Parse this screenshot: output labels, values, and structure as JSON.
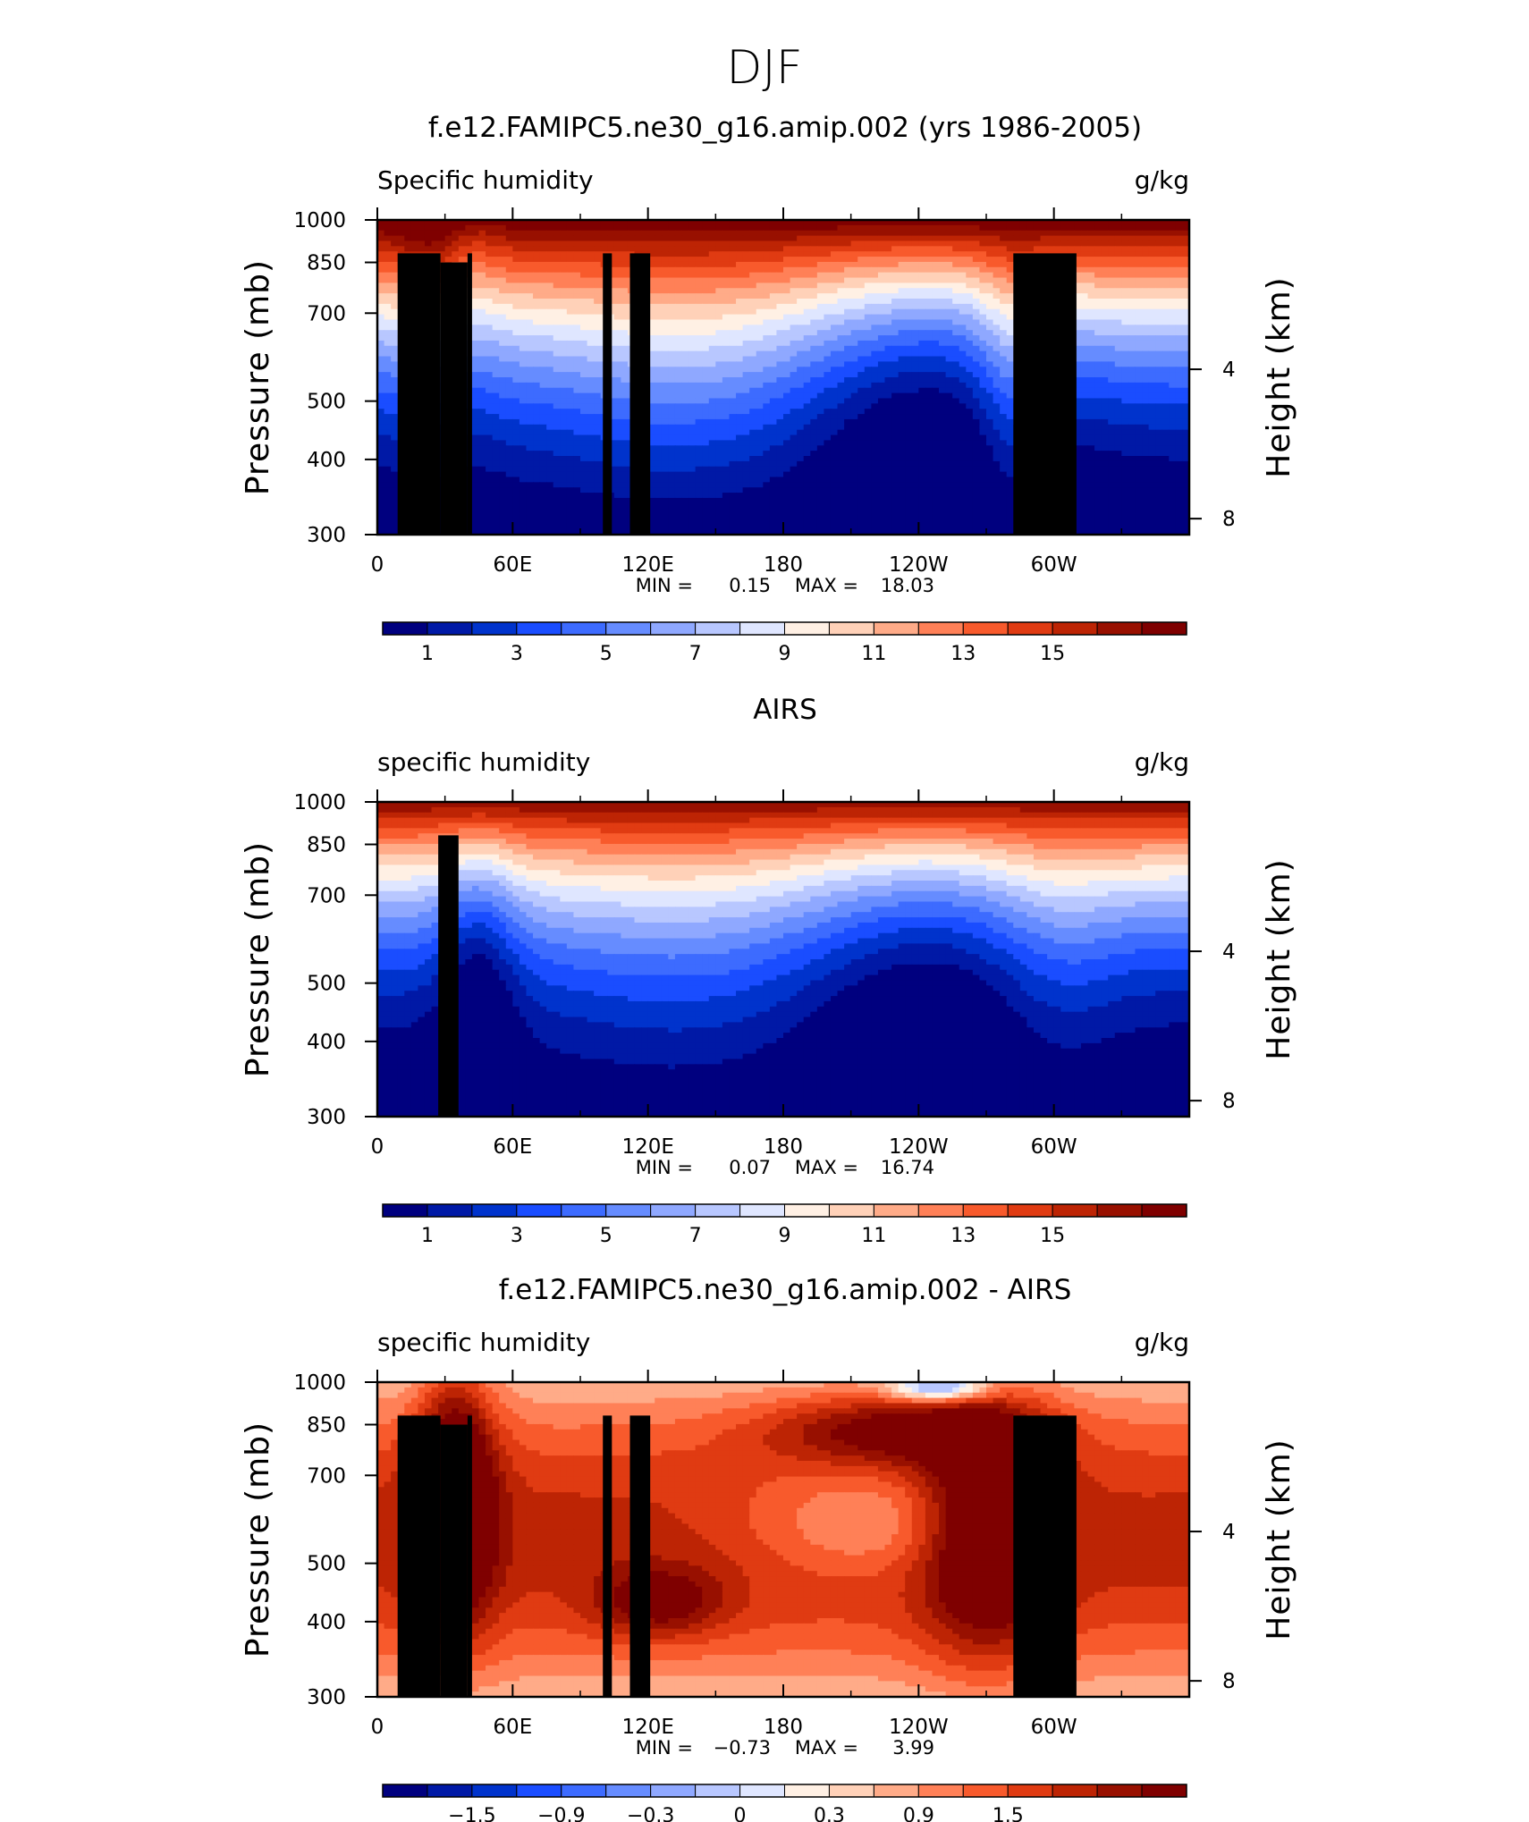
{
  "figure_title": "DJF",
  "colors": {
    "humidity_scale": [
      "#00007f",
      "#0019a6",
      "#0033cc",
      "#1a4dff",
      "#3d6bff",
      "#668cff",
      "#8fa8ff",
      "#b8c7ff",
      "#dfe6ff",
      "#fff0e4",
      "#ffd1b8",
      "#ffab88",
      "#ff8057",
      "#f85a2c",
      "#e03b12",
      "#bd2404",
      "#981000",
      "#7f0000"
    ],
    "land": "#000000"
  },
  "chart_data": [
    {
      "type": "heatmap",
      "title": "f.e12.FAMIPC5.ne30_g16.amip.002 (yrs 1986-2005)",
      "left_label": "Specific humidity",
      "right_label": "g/kg",
      "ylabel": "Pressure (mb)",
      "y2label": "Height (km)",
      "x_ticks": [
        "0",
        "60E",
        "120E",
        "180",
        "120W",
        "60W"
      ],
      "y_ticks": [
        "300",
        "400",
        "500",
        "700",
        "850",
        "1000"
      ],
      "y2_ticks": [
        "8",
        "4"
      ],
      "xlim": [
        0,
        360
      ],
      "ylim": [
        1000,
        300
      ],
      "min_label": "MIN =",
      "min": "0.15",
      "max_label": "MAX =",
      "max": "18.03",
      "colorbar_labels": [
        "1",
        "3",
        "5",
        "7",
        "9",
        "11",
        "13",
        "15"
      ]
    },
    {
      "type": "heatmap",
      "title": "AIRS",
      "left_label": "specific humidity",
      "right_label": "g/kg",
      "ylabel": "Pressure (mb)",
      "y2label": "Height (km)",
      "x_ticks": [
        "0",
        "60E",
        "120E",
        "180",
        "120W",
        "60W"
      ],
      "y_ticks": [
        "300",
        "400",
        "500",
        "700",
        "850",
        "1000"
      ],
      "y2_ticks": [
        "8",
        "4"
      ],
      "xlim": [
        0,
        360
      ],
      "ylim": [
        1000,
        300
      ],
      "min_label": "MIN =",
      "min": "0.07",
      "max_label": "MAX =",
      "max": "16.74",
      "colorbar_labels": [
        "1",
        "3",
        "5",
        "7",
        "9",
        "11",
        "13",
        "15"
      ]
    },
    {
      "type": "heatmap",
      "title": "f.e12.FAMIPC5.ne30_g16.amip.002 - AIRS",
      "left_label": "specific humidity",
      "right_label": "g/kg",
      "ylabel": "Pressure (mb)",
      "y2label": "Height (km)",
      "x_ticks": [
        "0",
        "60E",
        "120E",
        "180",
        "120W",
        "60W"
      ],
      "y_ticks": [
        "300",
        "400",
        "500",
        "700",
        "850",
        "1000"
      ],
      "y2_ticks": [
        "8",
        "4"
      ],
      "xlim": [
        0,
        360
      ],
      "ylim": [
        1000,
        300
      ],
      "min_label": "MIN =",
      "min": "−0.73",
      "max_label": "MAX =",
      "max": "3.99",
      "colorbar_labels": [
        "−1.5",
        "−0.9",
        "−0.3",
        "0",
        "0.3",
        "0.9",
        "1.5"
      ]
    }
  ]
}
